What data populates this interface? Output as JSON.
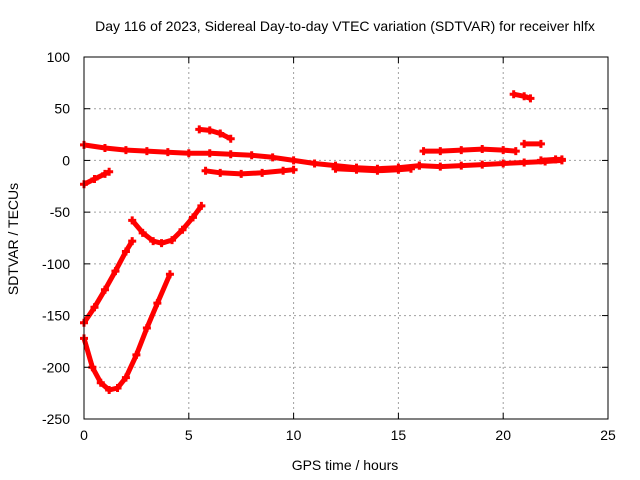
{
  "chart_data": {
    "type": "scatter",
    "title": "Day 116 of 2023, Sidereal Day-to-day VTEC variation (SDTVAR) for receiver hlfx",
    "xlabel": "GPS time / hours",
    "ylabel": "SDTVAR / TECUs",
    "xlim": [
      0,
      25
    ],
    "ylim": [
      -250,
      100
    ],
    "xticks": [
      0,
      5,
      10,
      15,
      20,
      25
    ],
    "yticks": [
      -250,
      -200,
      -150,
      -100,
      -50,
      0,
      50,
      100
    ],
    "grid": true,
    "color": "#ff0000",
    "series": [
      {
        "points": [
          [
            0.0,
            15
          ],
          [
            1.0,
            12
          ],
          [
            2.0,
            10
          ],
          [
            3.0,
            9
          ],
          [
            4.0,
            8
          ],
          [
            5.0,
            7
          ],
          [
            6.0,
            7
          ],
          [
            7.0,
            6
          ],
          [
            8.0,
            5
          ],
          [
            9.0,
            3
          ],
          [
            10.0,
            0
          ],
          [
            11.0,
            -3
          ],
          [
            12.0,
            -5
          ],
          [
            13.0,
            -7
          ],
          [
            14.0,
            -8
          ],
          [
            15.0,
            -7
          ],
          [
            16.0,
            -5
          ]
        ]
      },
      {
        "points": [
          [
            0.0,
            -23
          ],
          [
            0.5,
            -18
          ],
          [
            1.0,
            -13
          ],
          [
            1.2,
            -11
          ]
        ]
      },
      {
        "points": [
          [
            0.0,
            -157
          ],
          [
            0.5,
            -142
          ],
          [
            1.0,
            -125
          ],
          [
            1.5,
            -107
          ],
          [
            2.0,
            -88
          ],
          [
            2.3,
            -78
          ]
        ]
      },
      {
        "points": [
          [
            0.0,
            -172
          ],
          [
            0.4,
            -200
          ],
          [
            0.8,
            -215
          ],
          [
            1.2,
            -222
          ],
          [
            1.6,
            -220
          ],
          [
            2.0,
            -210
          ],
          [
            2.5,
            -188
          ],
          [
            3.0,
            -162
          ],
          [
            3.5,
            -138
          ],
          [
            4.1,
            -110
          ]
        ]
      },
      {
        "points": [
          [
            2.3,
            -58
          ],
          [
            2.8,
            -70
          ],
          [
            3.3,
            -78
          ],
          [
            3.7,
            -80
          ],
          [
            4.2,
            -77
          ],
          [
            4.7,
            -67
          ],
          [
            5.2,
            -55
          ],
          [
            5.6,
            -44
          ]
        ]
      },
      {
        "points": [
          [
            5.5,
            30
          ],
          [
            6.0,
            29
          ],
          [
            6.5,
            26
          ],
          [
            7.0,
            21
          ]
        ]
      },
      {
        "points": [
          [
            5.8,
            -10
          ],
          [
            6.5,
            -12
          ],
          [
            7.5,
            -13
          ],
          [
            8.5,
            -12
          ],
          [
            9.5,
            -10
          ],
          [
            10.0,
            -9
          ]
        ]
      },
      {
        "points": [
          [
            12.0,
            -8
          ],
          [
            13.0,
            -9
          ],
          [
            14.0,
            -10
          ],
          [
            15.0,
            -9
          ],
          [
            15.6,
            -8
          ]
        ]
      },
      {
        "points": [
          [
            16.2,
            9
          ],
          [
            17.0,
            9
          ],
          [
            18.0,
            10
          ],
          [
            19.0,
            11
          ],
          [
            20.0,
            10
          ],
          [
            20.6,
            9
          ]
        ]
      },
      {
        "points": [
          [
            16.0,
            -5
          ],
          [
            17.0,
            -6
          ],
          [
            18.0,
            -5
          ],
          [
            19.0,
            -4
          ],
          [
            20.0,
            -3
          ],
          [
            21.0,
            -2
          ],
          [
            22.0,
            -1
          ],
          [
            22.8,
            0
          ]
        ]
      },
      {
        "points": [
          [
            20.5,
            64
          ],
          [
            21.0,
            62
          ],
          [
            21.3,
            60
          ]
        ]
      },
      {
        "points": [
          [
            21.0,
            16
          ],
          [
            21.8,
            16
          ]
        ]
      },
      {
        "points": [
          [
            21.8,
            0
          ],
          [
            22.5,
            1
          ],
          [
            22.8,
            1
          ]
        ]
      }
    ]
  }
}
